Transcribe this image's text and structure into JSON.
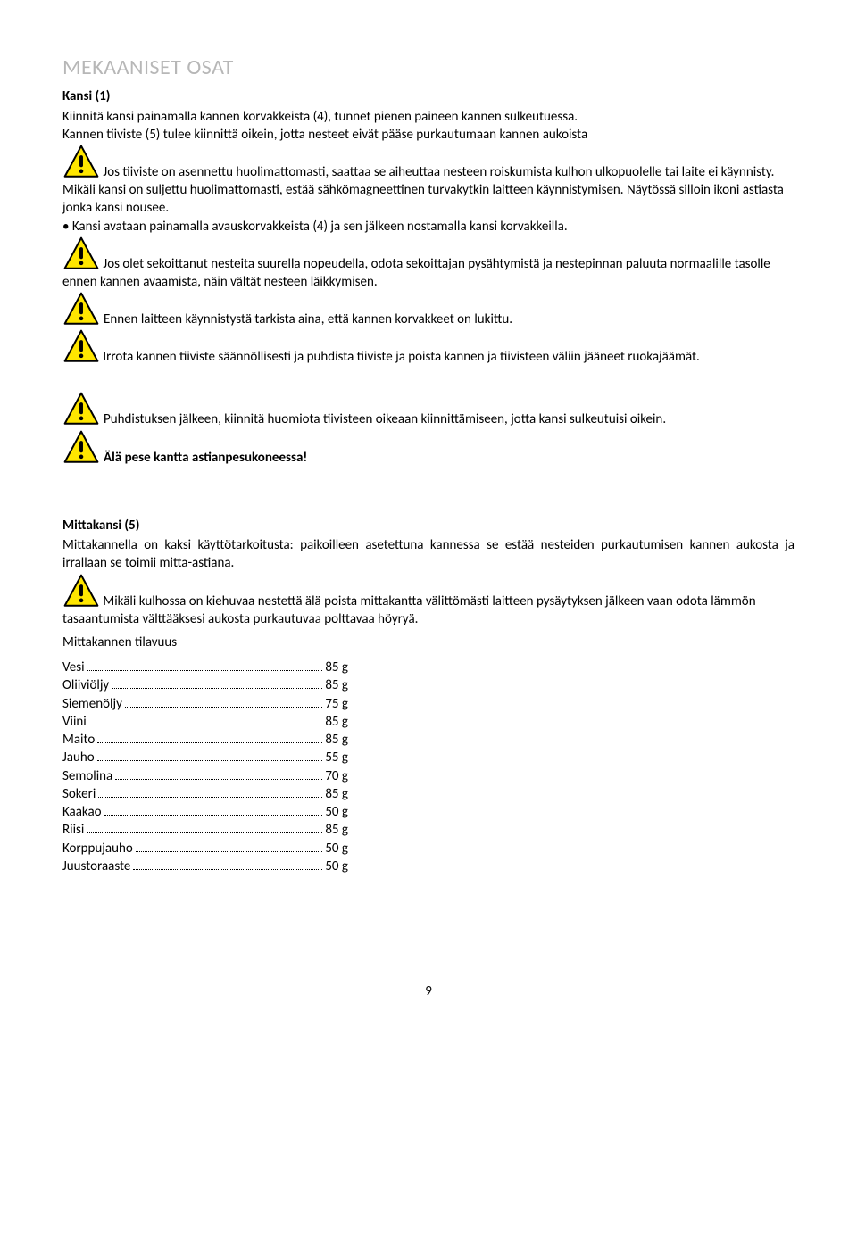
{
  "heading": "MEKAANISET OSAT",
  "section1_title": "Kansi (1)",
  "s1_p1": "Kiinnitä kansi painamalla kannen korvakkeista (4), tunnet pienen paineen kannen sulkeutuessa.",
  "s1_p2": "Kannen tiiviste (5) tulee kiinnittä oikein, jotta nesteet eivät pääse purkautumaan kannen aukoista",
  "s1_warn1": "Jos tiiviste on asennettu huolimattomasti, saattaa se aiheuttaa nesteen roiskumista kulhon ulkopuolelle tai laite ei käynnisty.",
  "s1_p3": "Mikäli kansi on suljettu huolimattomasti, estää sähkömagneettinen turvakytkin laitteen käynnistymisen. Näytössä silloin ikoni astiasta jonka kansi nousee.",
  "s1_bullet": "• Kansi avataan painamalla avauskorvakkeista (4) ja sen jälkeen nostamalla kansi korvakkeilla.",
  "s1_warn2": "Jos olet sekoittanut nesteita suurella nopeudella, odota sekoittajan pysähtymistä ja nestepinnan paluuta normaalille tasolle ennen kannen avaamista, näin vältät nesteen läikkymisen.",
  "s1_warn3": "Ennen laitteen käynnistystä tarkista aina, että kannen korvakkeet on lukittu.",
  "s1_warn4": "Irrota kannen tiiviste säännöllisesti ja puhdista tiiviste ja poista kannen ja tiivisteen väliin jääneet ruokajäämät.",
  "s1_warn5a": "Puhdistuksen jälkeen, kiinnitä huomiota tiivisteen oikeaan kiinnittämiseen, jotta kansi sulkeutuisi oikein.",
  "s1_warn6": "Älä pese kantta astianpesukoneessa!",
  "section2_title": "Mittakansi  (5)",
  "s2_p1": "Mittakannella on kaksi käyttötarkoitusta: paikoilleen asetettuna kannessa se estää nesteiden purkautumisen kannen aukosta ja irrallaan se toimii mitta-astiana.",
  "s2_warn1": "Mikäli kulhossa on kiehuvaa nestettä älä poista mittakantta välittömästi laitteen pysäytyksen jälkeen vaan odota lämmön tasaantumista välttääksesi aukosta purkautuvaa polttavaa höyryä.",
  "cap_title": "Mittakannen tilavuus",
  "capacities": [
    {
      "label": "Vesi",
      "value": "85 g"
    },
    {
      "label": "Oliiviöljy",
      "value": "85 g"
    },
    {
      "label": "Siemenöljy",
      "value": "75 g"
    },
    {
      "label": "Viini",
      "value": "85 g"
    },
    {
      "label": "Maito",
      "value": "85 g"
    },
    {
      "label": "Jauho",
      "value": "55 g"
    },
    {
      "label": "Semolina",
      "value": "70 g"
    },
    {
      "label": "Sokeri",
      "value": "85 g"
    },
    {
      "label": "Kaakao",
      "value": "50 g"
    },
    {
      "label": "Riisi",
      "value": "85 g"
    },
    {
      "label": "Korppujauho",
      "value": "50  g"
    },
    {
      "label": "Juustoraaste",
      "value": "50  g"
    }
  ],
  "page_number": "9",
  "warn_colors": {
    "fill": "#ffe600",
    "stroke": "#000000"
  }
}
